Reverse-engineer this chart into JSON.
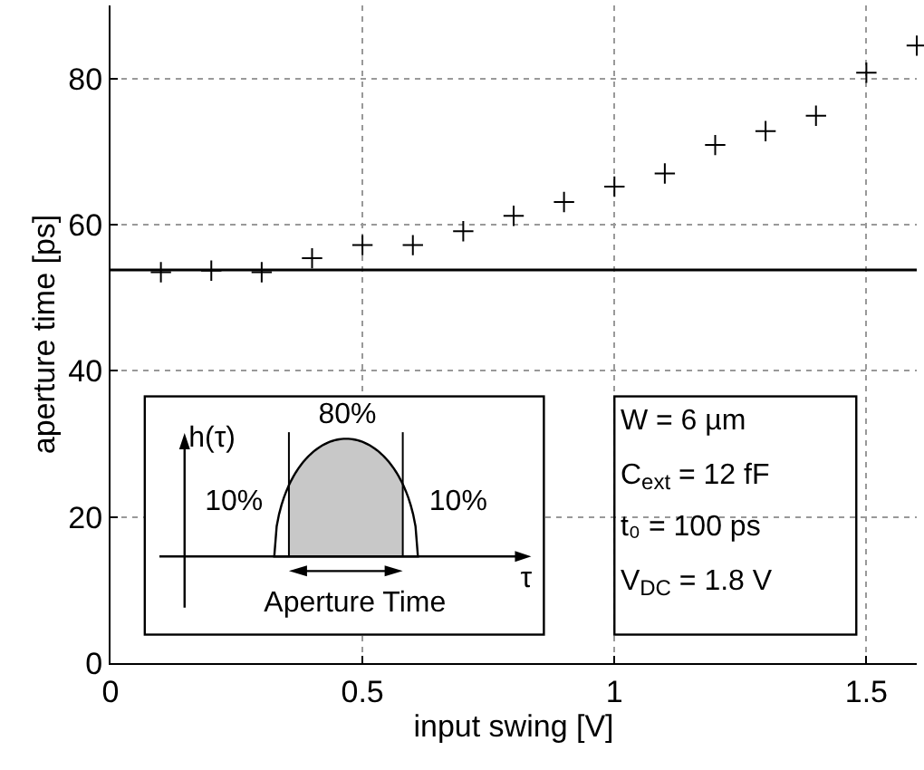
{
  "chart_data": {
    "type": "scatter",
    "xlabel": "input swing [V]",
    "ylabel": "aperture time [ps]",
    "x": [
      0.1,
      0.2,
      0.3,
      0.4,
      0.5,
      0.6,
      0.7,
      0.8,
      0.9,
      1.0,
      1.1,
      1.2,
      1.3,
      1.4,
      1.5,
      1.6
    ],
    "series": [
      {
        "color": "#000000",
        "values": [
          53.5,
          53.7,
          53.5,
          55.4,
          57.2,
          57.2,
          59.1,
          61.2,
          63.1,
          65.2,
          67.0,
          70.9,
          72.8,
          74.9,
          80.8,
          84.5
        ]
      }
    ],
    "xlim": [
      0,
      1.6
    ],
    "ylim": [
      0,
      90
    ],
    "xticks": [
      0,
      0.5,
      1,
      1.5
    ],
    "yticks": [
      0,
      20,
      40,
      60,
      80
    ],
    "grid": true,
    "marker": "cross",
    "ref_lines": [
      {
        "axis": "y",
        "value": 53.8,
        "color": "#000000"
      }
    ],
    "annotations": [
      "h(τ)",
      "80%",
      "10%",
      "10%",
      "τ",
      "Aperture Time",
      "W = 6 µm",
      "C$_{ext}$ = 12 fF",
      "t₀ = 100 ps",
      "V$_{DC}$ = 1.8 V"
    ]
  }
}
